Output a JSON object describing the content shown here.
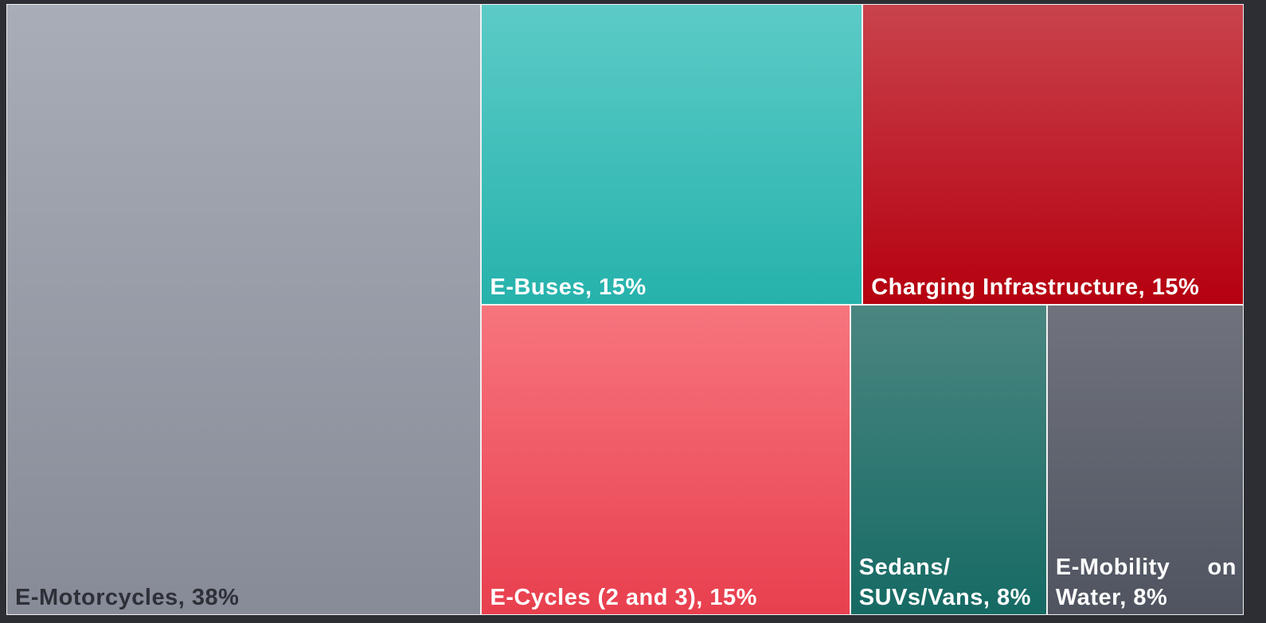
{
  "chart_data": {
    "type": "treemap",
    "labels": [
      "E-Motorcycles, 38%",
      "E-Buses, 15%",
      "Charging Infrastructure, 15%",
      "E-Cycles (2 and 3), 15%",
      "Sedans/ SUVs/Vans, 8%",
      "E-Mobility on Water, 8%"
    ],
    "values": [
      38,
      15,
      15,
      15,
      8,
      8
    ],
    "colors": [
      [
        "#a9adb7",
        "#868b97"
      ],
      [
        "#5ccbc7",
        "#26b2ac"
      ],
      [
        "#c9434c",
        "#b5000f"
      ],
      [
        "#f7757e",
        "#e83f4e"
      ],
      [
        "#4b8681",
        "#166a64"
      ],
      [
        "#70737d",
        "#4f5460"
      ]
    ],
    "label_colors": [
      "#2e3038",
      "#ffffff",
      "#ffffff",
      "#ffffff",
      "#ffffff",
      "#ffffff"
    ]
  }
}
